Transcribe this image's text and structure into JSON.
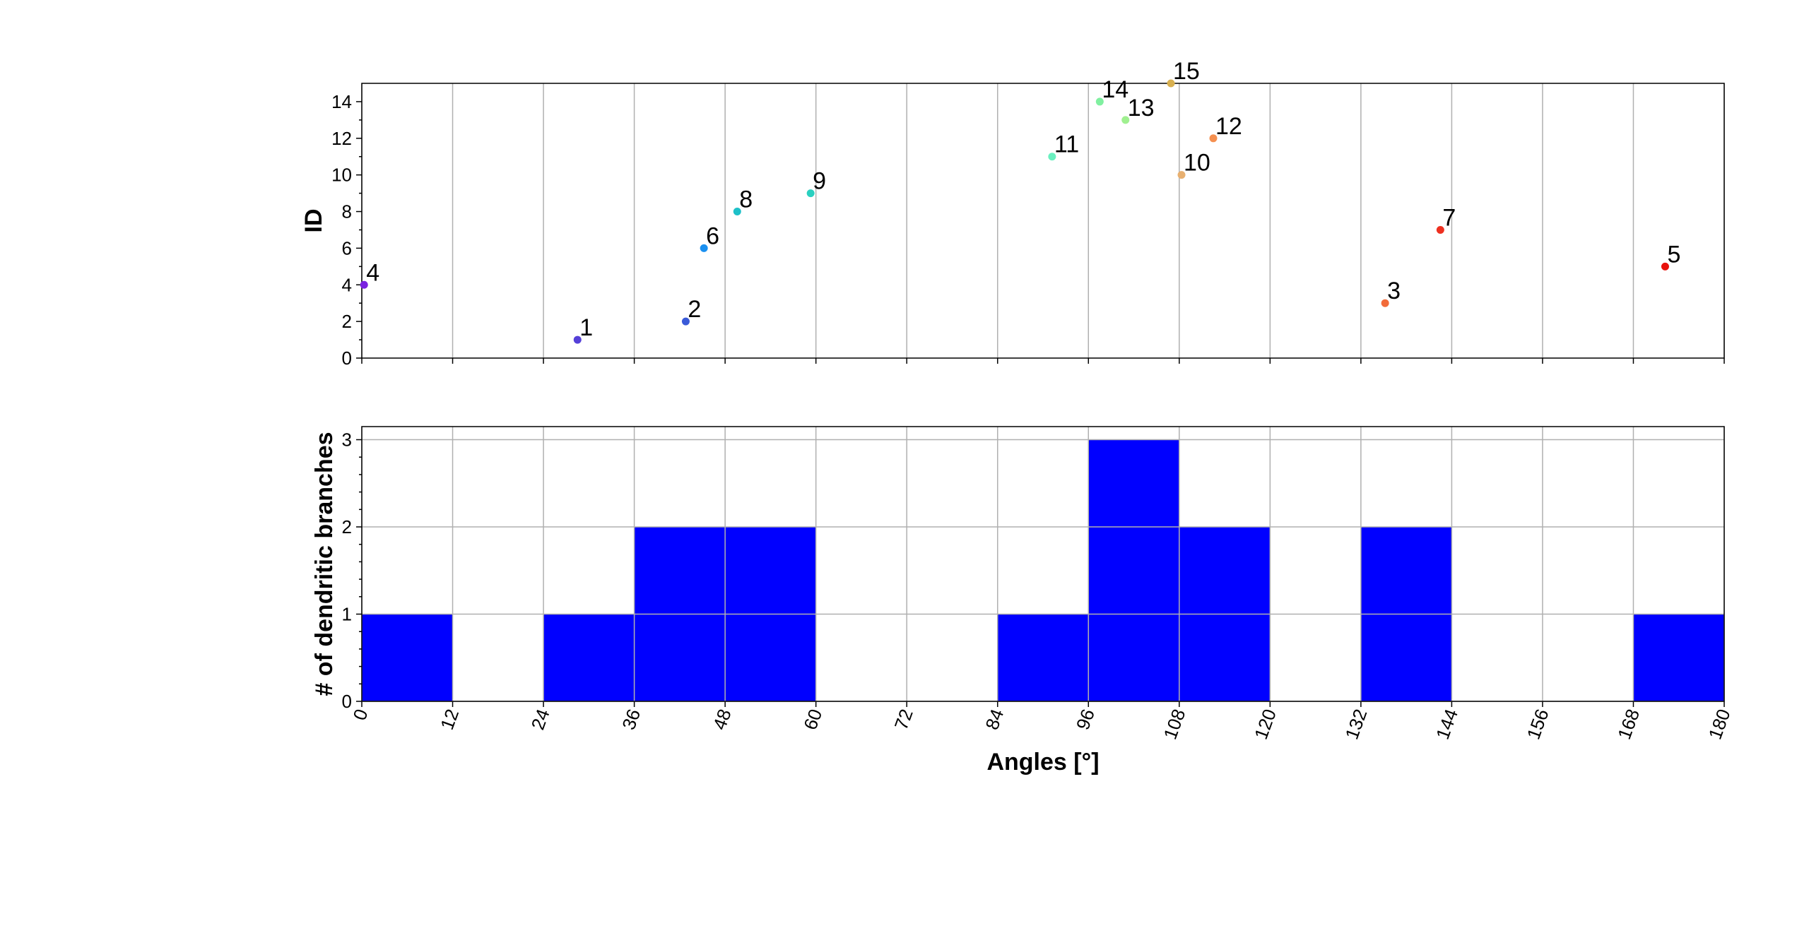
{
  "chart_data": [
    {
      "type": "scatter",
      "title": "",
      "xlabel": "",
      "ylabel": "ID",
      "xlim": [
        0,
        180
      ],
      "ylim": [
        0,
        15
      ],
      "xticks": [
        0,
        12,
        24,
        36,
        48,
        60,
        72,
        84,
        96,
        108,
        120,
        132,
        144,
        156,
        168,
        180
      ],
      "yticks": [
        0,
        2,
        4,
        6,
        8,
        10,
        12,
        14
      ],
      "grid": true,
      "points": [
        {
          "label": "1",
          "x": 28.5,
          "y": 1,
          "color": "#5540d8"
        },
        {
          "label": "2",
          "x": 42.8,
          "y": 2,
          "color": "#3a5ad8"
        },
        {
          "label": "3",
          "x": 135.2,
          "y": 3,
          "color": "#f26b3a"
        },
        {
          "label": "4",
          "x": 0.3,
          "y": 4,
          "color": "#7a22e0"
        },
        {
          "label": "5",
          "x": 172.2,
          "y": 5,
          "color": "#e8120c"
        },
        {
          "label": "6",
          "x": 45.2,
          "y": 6,
          "color": "#1a90f0"
        },
        {
          "label": "7",
          "x": 142.5,
          "y": 7,
          "color": "#ee3020"
        },
        {
          "label": "8",
          "x": 49.6,
          "y": 8,
          "color": "#1ec0c8"
        },
        {
          "label": "9",
          "x": 59.3,
          "y": 9,
          "color": "#2ad0c0"
        },
        {
          "label": "10",
          "x": 108.3,
          "y": 10,
          "color": "#e8b070"
        },
        {
          "label": "11",
          "x": 91.2,
          "y": 11,
          "color": "#6af0c0"
        },
        {
          "label": "12",
          "x": 112.5,
          "y": 12,
          "color": "#f59050"
        },
        {
          "label": "13",
          "x": 100.9,
          "y": 13,
          "color": "#a0f090"
        },
        {
          "label": "14",
          "x": 97.5,
          "y": 14,
          "color": "#80f0a0"
        },
        {
          "label": "15",
          "x": 106.9,
          "y": 15,
          "color": "#d8b050"
        }
      ]
    },
    {
      "type": "bar",
      "title": "",
      "xlabel": "Angles [°]",
      "ylabel": "# of dendritic branches",
      "xlim": [
        0,
        180
      ],
      "ylim": [
        0,
        3.15
      ],
      "xticks": [
        0,
        12,
        24,
        36,
        48,
        60,
        72,
        84,
        96,
        108,
        120,
        132,
        144,
        156,
        168,
        180
      ],
      "yticks": [
        0,
        1,
        2,
        3
      ],
      "grid": true,
      "bar_color": "#0000ff",
      "bin_width": 12,
      "bins": [
        {
          "start": 0,
          "count": 1
        },
        {
          "start": 12,
          "count": 0
        },
        {
          "start": 24,
          "count": 1
        },
        {
          "start": 36,
          "count": 2
        },
        {
          "start": 48,
          "count": 2
        },
        {
          "start": 60,
          "count": 0
        },
        {
          "start": 72,
          "count": 0
        },
        {
          "start": 84,
          "count": 1
        },
        {
          "start": 96,
          "count": 3
        },
        {
          "start": 108,
          "count": 2
        },
        {
          "start": 120,
          "count": 0
        },
        {
          "start": 132,
          "count": 2
        },
        {
          "start": 144,
          "count": 0
        },
        {
          "start": 156,
          "count": 0
        },
        {
          "start": 168,
          "count": 1
        }
      ]
    }
  ]
}
